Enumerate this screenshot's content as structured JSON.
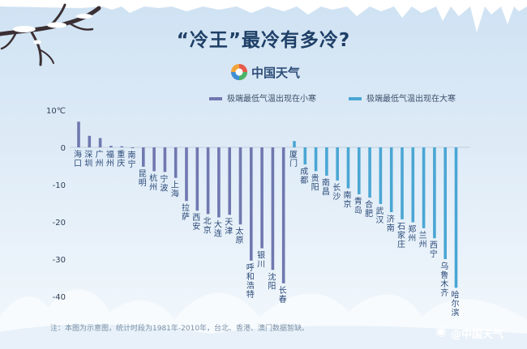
{
  "title": "“冷王”最冷有多冷?",
  "brand": "中国天气",
  "weibo": "@中国天气",
  "footnote": "注：本图为示意图，统计时段为1981年-2010年，台北、香港、澳门数据暂缺。",
  "colors": {
    "xiaohan": "#7078b0",
    "dahan": "#4aa6d4"
  },
  "chart_data": {
    "type": "bar",
    "title": "“冷王”最冷有多冷?",
    "ylabel": "℃",
    "ylim": [
      -40,
      10
    ],
    "yticks": [
      10,
      0,
      -10,
      -20,
      -30,
      -40
    ],
    "ytick_labels": [
      "10℃",
      "0",
      "-10",
      "-20",
      "-30",
      "-40"
    ],
    "legend_placement": "top-right",
    "grid": false,
    "series": [
      {
        "name": "极端最低气温出现在小寒",
        "color": "#7078b0",
        "categories": [
          "海口",
          "深圳",
          "广州",
          "福州",
          "重庆",
          "南宁",
          "昆明",
          "杭州",
          "宁波",
          "上海",
          "拉萨",
          "西安",
          "北京",
          "大连",
          "天津",
          "太原",
          "呼和浩特",
          "银川",
          "沈阳",
          "长春"
        ],
        "values": [
          6.9,
          3.1,
          2.5,
          0.4,
          0.3,
          -0.2,
          -5.2,
          -6.4,
          -6.6,
          -8.2,
          -14.4,
          -17.0,
          -17.9,
          -18.8,
          -18.1,
          -20.7,
          -30.4,
          -27.1,
          -32.9,
          -36.5
        ]
      },
      {
        "name": "极端最低气温出现在大寒",
        "color": "#4aa6d4",
        "categories": [
          "厦门",
          "成都",
          "贵阳",
          "南昌",
          "长沙",
          "南京",
          "青岛",
          "合肥",
          "武汉",
          "济南",
          "石家庄",
          "郑州",
          "兰州",
          "西宁",
          "乌鲁木齐",
          "哈尔滨"
        ],
        "values": [
          1.7,
          -4.6,
          -6.4,
          -7.6,
          -8.9,
          -11.0,
          -12.6,
          -13.5,
          -15.2,
          -17.4,
          -19.3,
          -20.1,
          -21.7,
          -24.4,
          -30.0,
          -37.7
        ]
      }
    ]
  }
}
